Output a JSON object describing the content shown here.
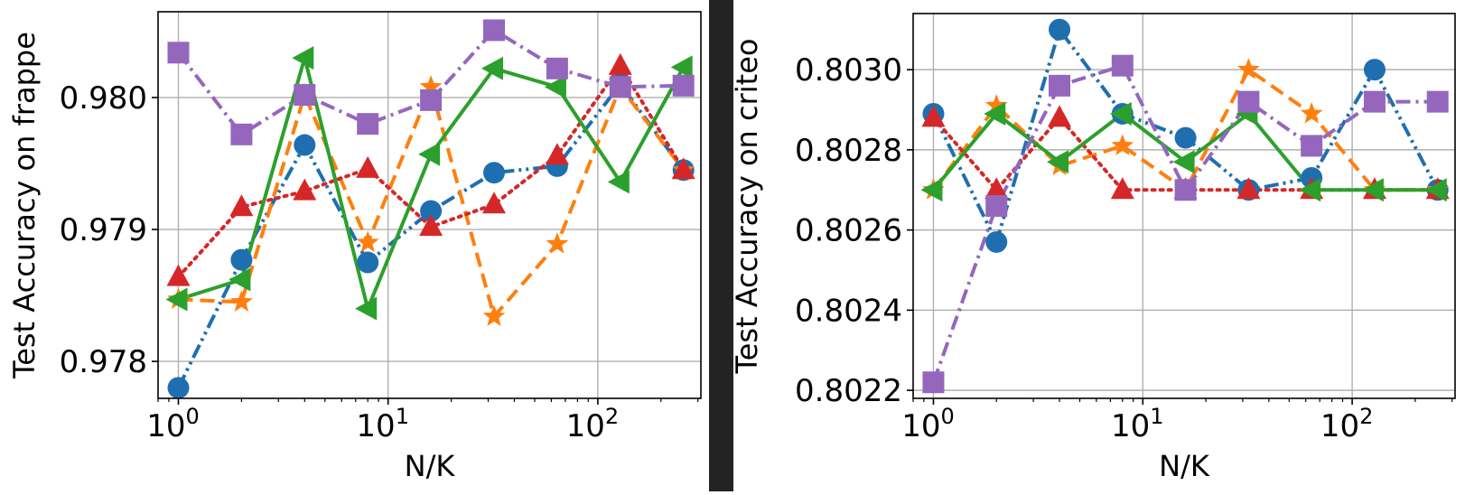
{
  "chart_data": [
    {
      "type": "line",
      "xscale": "log",
      "xlabel": "N/K",
      "ylabel": "Test Accuracy on frappe",
      "xlim": [
        0.8,
        310
      ],
      "ylim": [
        0.97772,
        0.98065
      ],
      "xticks": [
        {
          "value": 1,
          "base": "10",
          "exp": "0"
        },
        {
          "value": 10,
          "base": "10",
          "exp": "1"
        },
        {
          "value": 100,
          "base": "10",
          "exp": "2"
        }
      ],
      "yticks": [
        {
          "value": 0.978,
          "label": "0.978"
        },
        {
          "value": 0.979,
          "label": "0.979"
        },
        {
          "value": 0.98,
          "label": "0.980"
        }
      ],
      "grid": true,
      "x": [
        1,
        2,
        4,
        8,
        16,
        32,
        64,
        128,
        256
      ],
      "series": [
        {
          "color": "#1f6fb0",
          "marker": "circle",
          "dash": "dashdotdot",
          "values": [
            0.9778,
            0.97877,
            0.97964,
            0.97875,
            0.97914,
            0.97943,
            0.97948,
            0.9801,
            0.97945
          ]
        },
        {
          "color": "#ff7f0e",
          "marker": "star",
          "dash": "dashed",
          "values": [
            0.97847,
            0.97845,
            0.98002,
            0.9789,
            0.98008,
            0.97834,
            0.97889,
            0.98008,
            0.97945
          ]
        },
        {
          "color": "#d62728",
          "marker": "triangle-up",
          "dash": "dotted",
          "values": [
            0.97864,
            0.97917,
            0.97929,
            0.97946,
            0.97902,
            0.97919,
            0.97956,
            0.98024,
            0.97945
          ]
        },
        {
          "color": "#2ca02c",
          "marker": "triangle-left",
          "dash": "solid",
          "values": [
            0.97847,
            0.97862,
            0.9803,
            0.9784,
            0.97957,
            0.98022,
            0.98008,
            0.97936,
            0.98023
          ]
        },
        {
          "color": "#9467bd",
          "marker": "square",
          "dash": "dashdot",
          "values": [
            0.98034,
            0.97972,
            0.98002,
            0.9798,
            0.97998,
            0.98051,
            0.98022,
            0.98008,
            0.98009
          ]
        }
      ]
    },
    {
      "type": "line",
      "xscale": "log",
      "xlabel": "N/K",
      "ylabel": "Test Accuracy on criteo",
      "xlim": [
        0.8,
        310
      ],
      "ylim": [
        0.80218,
        0.80314
      ],
      "xticks": [
        {
          "value": 1,
          "base": "10",
          "exp": "0"
        },
        {
          "value": 10,
          "base": "10",
          "exp": "1"
        },
        {
          "value": 100,
          "base": "10",
          "exp": "2"
        }
      ],
      "yticks": [
        {
          "value": 0.8022,
          "label": "0.8022"
        },
        {
          "value": 0.8024,
          "label": "0.8024"
        },
        {
          "value": 0.8026,
          "label": "0.8026"
        },
        {
          "value": 0.8028,
          "label": "0.8028"
        },
        {
          "value": 0.803,
          "label": "0.8030"
        }
      ],
      "grid": true,
      "x": [
        1,
        2,
        4,
        8,
        16,
        32,
        64,
        128,
        256
      ],
      "series": [
        {
          "color": "#1f6fb0",
          "marker": "circle",
          "dash": "dashdotdot",
          "values": [
            0.80289,
            0.80257,
            0.8031,
            0.80289,
            0.80283,
            0.8027,
            0.80273,
            0.803,
            0.8027
          ]
        },
        {
          "color": "#ff7f0e",
          "marker": "star",
          "dash": "dashed",
          "values": [
            0.8027,
            0.80291,
            0.80276,
            0.80281,
            0.8027,
            0.803,
            0.80289,
            0.8027,
            0.8027
          ]
        },
        {
          "color": "#d62728",
          "marker": "triangle-up",
          "dash": "dotted",
          "values": [
            0.80288,
            0.8027,
            0.80288,
            0.8027,
            0.8027,
            0.8027,
            0.8027,
            0.8027,
            0.8027
          ]
        },
        {
          "color": "#2ca02c",
          "marker": "triangle-left",
          "dash": "solid",
          "values": [
            0.8027,
            0.80289,
            0.80277,
            0.80289,
            0.80277,
            0.80289,
            0.8027,
            0.8027,
            0.8027
          ]
        },
        {
          "color": "#9467bd",
          "marker": "square",
          "dash": "dashdot",
          "values": [
            0.80222,
            0.80266,
            0.80296,
            0.80301,
            0.8027,
            0.80292,
            0.80281,
            0.80292,
            0.80292
          ]
        }
      ]
    }
  ]
}
